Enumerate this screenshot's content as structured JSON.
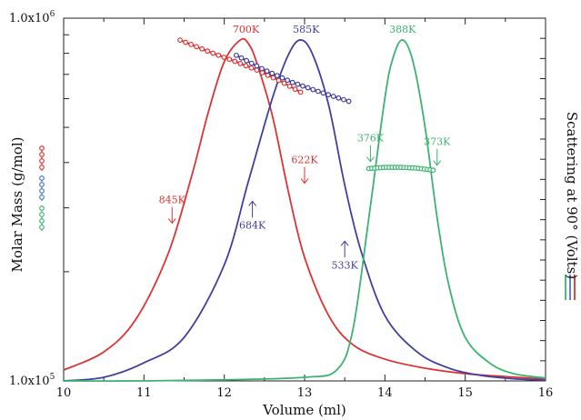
{
  "chart_data": {
    "type": "line",
    "xlabel": "Volume (ml)",
    "ylabel": "Molar Mass (g/mol)",
    "y2label": "Scattering at 90° (Volts)",
    "xlim": [
      10,
      16
    ],
    "ylim": [
      100000,
      1000000
    ],
    "y_scale": "log",
    "x_ticks": [
      10,
      11,
      12,
      13,
      14,
      15,
      16
    ],
    "x_tick_labels": [
      "10",
      "11",
      "12",
      "13",
      "14",
      "15",
      "16"
    ],
    "y_tick_label_top": "1.0x10",
    "y_tick_label_top_exp": "6",
    "y_tick_label_bottom": "1.0x10",
    "y_tick_label_bottom_exp": "5",
    "series": [
      {
        "color": "#dd3333",
        "scatter_peak": {
          "x": [
            10,
            10.5,
            10.9,
            11.3,
            11.6,
            11.8,
            12.0,
            12.2,
            12.3,
            12.4,
            12.6,
            12.8,
            13.0,
            13.3,
            13.6,
            14.0,
            14.5,
            15.0,
            15.5,
            16.0
          ],
          "y": [
            0.03,
            0.08,
            0.17,
            0.35,
            0.57,
            0.74,
            0.88,
            0.94,
            0.93,
            0.88,
            0.73,
            0.52,
            0.34,
            0.18,
            0.1,
            0.06,
            0.035,
            0.02,
            0.012,
            0.005
          ]
        },
        "molar_mass": {
          "x": [
            11.45,
            11.8,
            12.1,
            12.4,
            12.7,
            12.95
          ],
          "y": [
            870000,
            810000,
            765000,
            720000,
            670000,
            625000
          ]
        }
      },
      {
        "color": "#4040a0",
        "scatter_peak": {
          "x": [
            10,
            10.5,
            11.0,
            11.5,
            12.0,
            12.3,
            12.6,
            12.8,
            12.95,
            13.1,
            13.3,
            13.5,
            13.7,
            14.0,
            14.4,
            14.8,
            15.2,
            15.6,
            16.0
          ],
          "y": [
            0.0,
            0.01,
            0.05,
            0.12,
            0.32,
            0.55,
            0.78,
            0.9,
            0.94,
            0.9,
            0.76,
            0.54,
            0.36,
            0.18,
            0.08,
            0.035,
            0.015,
            0.006,
            0.002
          ]
        },
        "molar_mass": {
          "x": [
            12.15,
            12.5,
            12.85,
            13.2,
            13.55
          ],
          "y": [
            790000,
            720000,
            665000,
            625000,
            590000
          ]
        }
      },
      {
        "color": "#3cb371",
        "scatter_peak": {
          "x": [
            10,
            11.0,
            12.0,
            13.0,
            13.4,
            13.6,
            13.8,
            14.0,
            14.1,
            14.22,
            14.35,
            14.5,
            14.65,
            14.8,
            15.0,
            15.3,
            15.6,
            16.0
          ],
          "y": [
            0.0,
            0.0,
            0.003,
            0.01,
            0.03,
            0.14,
            0.45,
            0.78,
            0.89,
            0.94,
            0.88,
            0.7,
            0.45,
            0.26,
            0.12,
            0.05,
            0.02,
            0.008
          ]
        },
        "molar_mass": {
          "x": [
            13.8,
            14.0,
            14.2,
            14.4,
            14.6
          ],
          "y": [
            385000,
            388000,
            388000,
            386000,
            381000
          ]
        }
      }
    ],
    "annotations": [
      {
        "text": "700K",
        "color": "#dd3333",
        "x": 12.27,
        "y_frac": 0.96,
        "arrow": "none"
      },
      {
        "text": "585K",
        "color": "#4040a0",
        "x": 13.02,
        "y_frac": 0.96,
        "arrow": "none"
      },
      {
        "text": "388K",
        "color": "#3cb371",
        "x": 14.22,
        "y_frac": 0.96,
        "arrow": "none"
      },
      {
        "text": "622K",
        "color": "#dd3333",
        "x": 13.0,
        "y_frac": 0.6,
        "arrow": "down"
      },
      {
        "text": "845K",
        "color": "#dd3333",
        "x": 11.35,
        "y_frac": 0.49,
        "arrow": "down"
      },
      {
        "text": "684K",
        "color": "#4040a0",
        "x": 12.35,
        "y_frac": 0.42,
        "arrow": "up"
      },
      {
        "text": "533K",
        "color": "#4040a0",
        "x": 13.5,
        "y_frac": 0.31,
        "arrow": "up"
      },
      {
        "text": "376K",
        "color": "#3cb371",
        "x": 13.82,
        "y_frac": 0.66,
        "arrow": "down"
      },
      {
        "text": "373K",
        "color": "#3cb371",
        "x": 14.65,
        "y_frac": 0.65,
        "arrow": "down"
      }
    ],
    "grid": false,
    "y_axis_legend_colors": [
      "#dd3333",
      "#4a78c0",
      "#3cb371"
    ],
    "y2_axis_legend_colors": [
      "#3cb371",
      "#4a78c0",
      "#dd3333"
    ]
  }
}
